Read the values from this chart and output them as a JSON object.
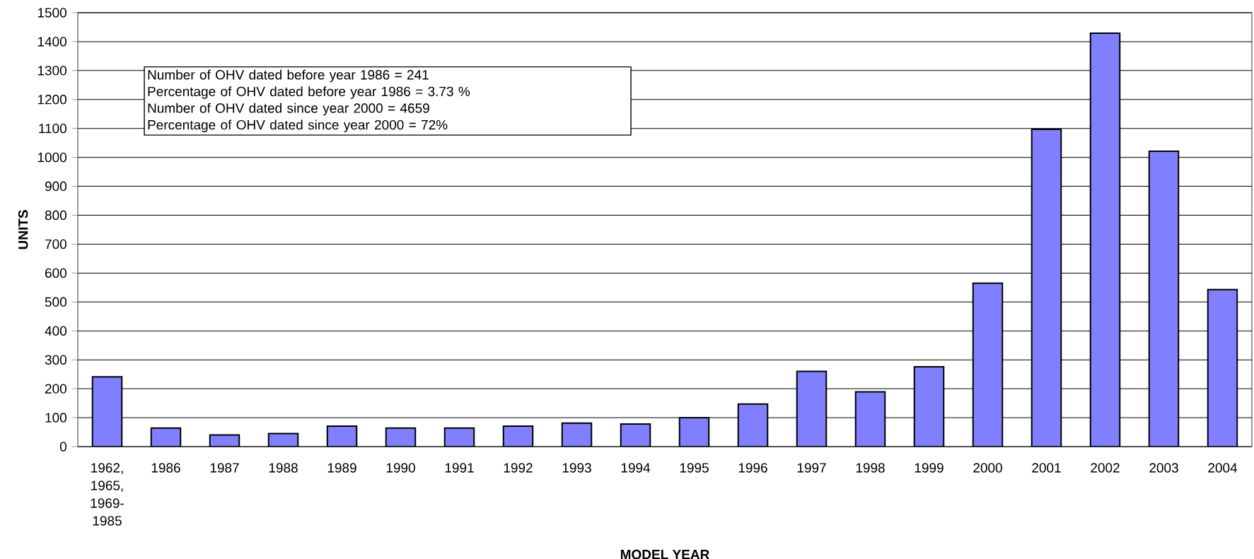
{
  "chart_data": {
    "type": "bar",
    "categories": [
      "1962, 1965, 1969-1985",
      "1986",
      "1987",
      "1988",
      "1989",
      "1990",
      "1991",
      "1992",
      "1993",
      "1994",
      "1995",
      "1996",
      "1997",
      "1998",
      "1999",
      "2000",
      "2001",
      "2002",
      "2003",
      "2004"
    ],
    "values": [
      241,
      64,
      40,
      45,
      71,
      64,
      64,
      71,
      81,
      78,
      100,
      147,
      260,
      189,
      276,
      565,
      1097,
      1429,
      1021,
      543
    ],
    "color": "#8080ff",
    "xlabel": "MODEL YEAR",
    "ylabel": "UNITS",
    "ylim": [
      0,
      1500
    ],
    "yticks": [
      0,
      100,
      200,
      300,
      400,
      500,
      600,
      700,
      800,
      900,
      1000,
      1100,
      1200,
      1300,
      1400,
      1500
    ],
    "grid": "y",
    "annotations": [
      "Number of OHV dated before year 1986 = 241",
      "Percentage of OHV dated before year 1986 = 3.73 %",
      "Number of OHV dated since year 2000 = 4659",
      "Percentage of OHV dated since year 2000 = 72%"
    ]
  }
}
